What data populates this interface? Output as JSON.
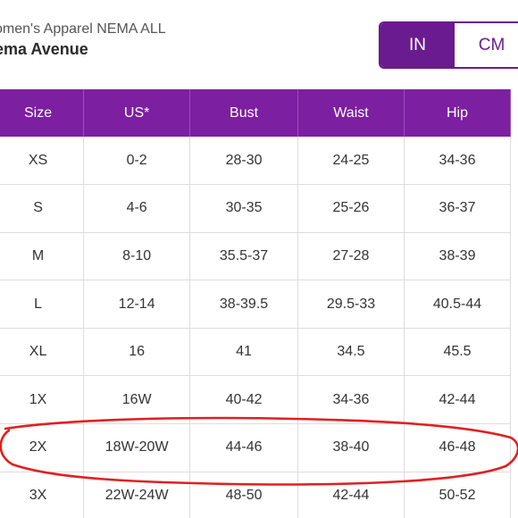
{
  "header": {
    "breadcrumb": "omen's Apparel NEMA ALL",
    "brand": "ema Avenue"
  },
  "unit_toggle": {
    "options": [
      "IN",
      "CM"
    ],
    "selected": "IN",
    "active_color": "#6a1b8f"
  },
  "table": {
    "header_color": "#7c1fa0",
    "columns": [
      "Size",
      "US*",
      "Bust",
      "Waist",
      "Hip"
    ],
    "rows": [
      [
        "XS",
        "0-2",
        "28-30",
        "24-25",
        "34-36"
      ],
      [
        "S",
        "4-6",
        "30-35",
        "25-26",
        "36-37"
      ],
      [
        "M",
        "8-10",
        "35.5-37",
        "27-28",
        "38-39"
      ],
      [
        "L",
        "12-14",
        "38-39.5",
        "29.5-33",
        "40.5-44"
      ],
      [
        "XL",
        "16",
        "41",
        "34.5",
        "45.5"
      ],
      [
        "1X",
        "16W",
        "40-42",
        "34-36",
        "42-44"
      ],
      [
        "2X",
        "18W-20W",
        "44-46",
        "38-40",
        "46-48"
      ],
      [
        "3X",
        "22W-24W",
        "48-50",
        "42-44",
        "50-52"
      ]
    ]
  },
  "annotation": {
    "type": "hand-drawn-ellipse",
    "row": "2X",
    "color": "#e02020"
  }
}
